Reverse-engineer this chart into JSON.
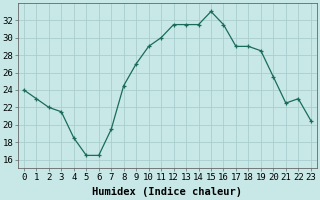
{
  "x": [
    0,
    1,
    2,
    3,
    4,
    5,
    6,
    7,
    8,
    9,
    10,
    11,
    12,
    13,
    14,
    15,
    16,
    17,
    18,
    19,
    20,
    21,
    22,
    23
  ],
  "y": [
    24,
    23,
    22,
    21.5,
    18.5,
    16.5,
    16.5,
    19.5,
    24.5,
    27,
    29,
    30,
    31.5,
    31.5,
    31.5,
    33,
    31.5,
    29,
    29,
    28.5,
    25.5,
    22.5,
    23,
    20.5
  ],
  "line_color": "#1a6b5a",
  "marker": "+",
  "marker_size": 3,
  "bg_color": "#c8e8e8",
  "grid_color": "#aacece",
  "xlabel": "Humidex (Indice chaleur)",
  "xlim": [
    -0.5,
    23.5
  ],
  "ylim": [
    15,
    34
  ],
  "yticks": [
    16,
    18,
    20,
    22,
    24,
    26,
    28,
    30,
    32
  ],
  "xticks": [
    0,
    1,
    2,
    3,
    4,
    5,
    6,
    7,
    8,
    9,
    10,
    11,
    12,
    13,
    14,
    15,
    16,
    17,
    18,
    19,
    20,
    21,
    22,
    23
  ],
  "tick_fontsize": 6.5,
  "label_fontsize": 7.5
}
